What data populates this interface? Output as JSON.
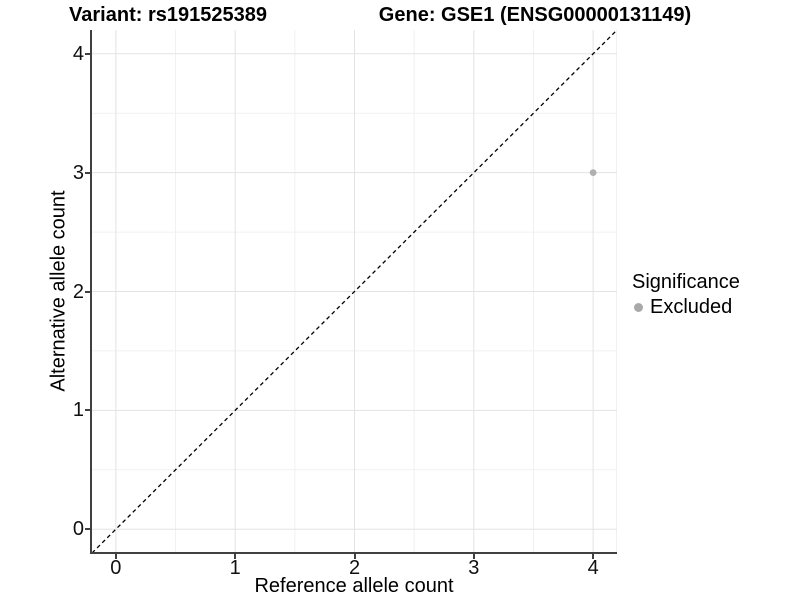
{
  "background": "#ffffff",
  "chart_data": {
    "type": "scatter",
    "titles": {
      "left": "Variant: rs191525389",
      "right": "Gene: GSE1 (ENSG00000131149)"
    },
    "xlabel": "Reference allele count",
    "ylabel": "Alternative allele count",
    "x_ticks": [
      0,
      1,
      2,
      3,
      4
    ],
    "y_ticks": [
      0,
      1,
      2,
      3,
      4
    ],
    "x_minor_ticks": [
      0.5,
      1.5,
      2.5,
      3.5
    ],
    "y_minor_ticks": [
      0.5,
      1.5,
      2.5,
      3.5
    ],
    "xlim": [
      -0.2,
      4.2
    ],
    "ylim": [
      -0.2,
      4.2
    ],
    "grid": {
      "show": true,
      "major_color": "#e3e3e3",
      "minor_color": "#f1f1f1"
    },
    "axis_line_color": "#404040",
    "reference_line": {
      "kind": "identity y=x",
      "style": "dashed",
      "color": "#000000"
    },
    "series": [
      {
        "name": "Excluded",
        "color": "#b0b0b0",
        "points": [
          {
            "x": 4,
            "y": 3
          }
        ]
      }
    ],
    "legend": {
      "title": "Significance",
      "position": "right",
      "entries": [
        {
          "label": "Excluded",
          "color": "#a9a9a9"
        }
      ]
    }
  }
}
